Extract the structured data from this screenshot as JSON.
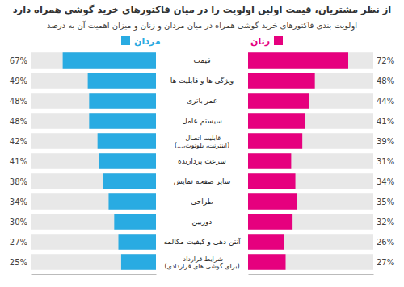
{
  "chart_data": {
    "type": "bar",
    "orientation": "horizontal",
    "title": "از نظر مشتریان، قیمت اولین اولویت را در میان فاکتورهای خرید گوشی همراه دارد",
    "subtitle": "اولویت بندی فاکتورهای خرید گوشی همراه در میان مردان و زنان و میزان اهمیت آن به درصد",
    "categories": [
      "قیمت",
      "ویژگی ها و قابلیت ها",
      "عمر باتری",
      "سیستم عامل",
      "قابلیت اتصال (اینترنت، بلوتوث،...)",
      "سرعت پردازنده",
      "سایز صفحه نمایش",
      "طراحی",
      "دوربین",
      "آنتن دهی و کیفیت مکالمه",
      "شرایط قرارداد (برای گوشی های قراردادی)"
    ],
    "series": [
      {
        "name": "مردان",
        "color": "#29abe2",
        "values": [
          67,
          49,
          48,
          48,
          42,
          41,
          38,
          34,
          30,
          27,
          25
        ],
        "value_labels": [
          "67%",
          "49%",
          "48%",
          "48%",
          "42%",
          "41%",
          "38%",
          "34%",
          "30%",
          "27%",
          "25%"
        ]
      },
      {
        "name": "زنان",
        "color": "#e6007e",
        "values": [
          72,
          48,
          44,
          41,
          39,
          31,
          34,
          35,
          32,
          26,
          27
        ],
        "value_labels": [
          "72%",
          "48%",
          "44%",
          "41%",
          "39%",
          "31%",
          "34%",
          "35%",
          "32%",
          "26%",
          "27%"
        ]
      }
    ],
    "xlim": [
      0,
      90
    ],
    "tick_labels": false,
    "data_labels": true,
    "legend": "top"
  }
}
